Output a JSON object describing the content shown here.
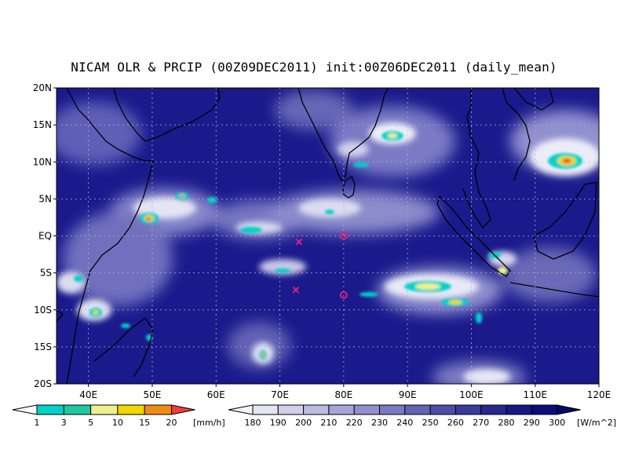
{
  "title": "NICAM OLR & PRCIP (00Z09DEC2011) init:00Z06DEC2011 (daily_mean)",
  "map": {
    "lon_range": [
      35,
      120
    ],
    "lat_range": [
      -20,
      20
    ],
    "lat_ticks": [
      {
        "lat": 20,
        "label": "20N"
      },
      {
        "lat": 15,
        "label": "15N"
      },
      {
        "lat": 10,
        "label": "10N"
      },
      {
        "lat": 5,
        "label": "5N"
      },
      {
        "lat": 0,
        "label": "EQ"
      },
      {
        "lat": -5,
        "label": "5S"
      },
      {
        "lat": -10,
        "label": "10S"
      },
      {
        "lat": -15,
        "label": "15S"
      },
      {
        "lat": -20,
        "label": "20S"
      }
    ],
    "lon_ticks": [
      {
        "lon": 40,
        "label": "40E"
      },
      {
        "lon": 50,
        "label": "50E"
      },
      {
        "lon": 60,
        "label": "60E"
      },
      {
        "lon": 70,
        "label": "70E"
      },
      {
        "lon": 80,
        "label": "80E"
      },
      {
        "lon": 90,
        "label": "90E"
      },
      {
        "lon": 100,
        "label": "100E"
      },
      {
        "lon": 110,
        "label": "110E"
      },
      {
        "lon": 120,
        "label": "120E"
      }
    ],
    "grid": "dotted",
    "markers": [
      {
        "type": "x",
        "lon": 73,
        "lat": -0.8,
        "color": "#e0207a"
      },
      {
        "type": "circle",
        "lon": 80,
        "lat": 0,
        "color": "#e0207a"
      },
      {
        "type": "x",
        "lon": 72.5,
        "lat": -7.3,
        "color": "#e0207a"
      },
      {
        "type": "circle",
        "lon": 80,
        "lat": -8,
        "color": "#e0207a"
      }
    ],
    "background_color": "#1a1a8c"
  },
  "precip_colorbar": {
    "labels": [
      "1",
      "3",
      "5",
      "10",
      "15",
      "20"
    ],
    "unit": "[mm/h]",
    "colors": [
      "#00d2c8",
      "#20c8a0",
      "#f0f08c",
      "#f0d800",
      "#f08c14",
      "#f03c3c"
    ]
  },
  "olr_colorbar": {
    "labels": [
      "180",
      "190",
      "200",
      "210",
      "220",
      "230",
      "240",
      "250",
      "260",
      "270",
      "280",
      "290",
      "300"
    ],
    "unit": "[W/m^2]",
    "colors": [
      "#f2f2fa",
      "#e4e4f4",
      "#d0d0ec",
      "#bcbce2",
      "#a6a6d8",
      "#9090cc",
      "#7a7ac0",
      "#6464b4",
      "#4e4ea8",
      "#3a3a9c",
      "#282890",
      "#181884",
      "#0c0c78",
      "#06066a"
    ]
  }
}
